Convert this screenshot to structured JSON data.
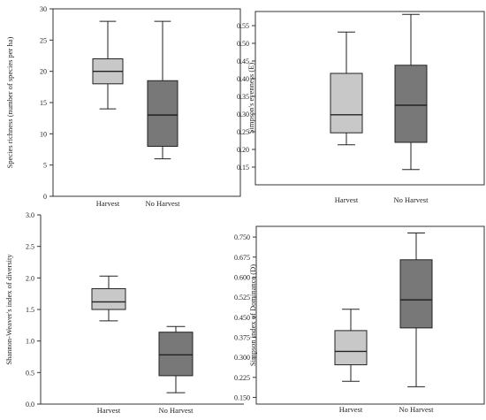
{
  "colors": {
    "harvest_fill": "#c8c8c8",
    "no_harvest_fill": "#787878",
    "stroke": "#222222",
    "frame": "#333333"
  },
  "chart_data": [
    {
      "type": "box",
      "ylabel": "Species richness (number of species per ha)",
      "categories": [
        "Harvest",
        "No Harvest"
      ],
      "ylim": [
        0,
        30
      ],
      "yticks": [
        "0",
        "5",
        "10",
        "15",
        "20",
        "25",
        "30"
      ],
      "frame": "full",
      "boxes": [
        {
          "category": "Harvest",
          "min": 14,
          "q1": 18,
          "median": 20,
          "q3": 22,
          "max": 28
        },
        {
          "category": "No Harvest",
          "min": 6,
          "q1": 8,
          "median": 13,
          "q3": 18.5,
          "max": 28
        }
      ]
    },
    {
      "type": "box",
      "ylabel": "Simpson's evenness (E)",
      "categories": [
        "Harvest",
        "No Harvest"
      ],
      "ylim": [
        0.1,
        0.59
      ],
      "yticks": [
        "0.15",
        "0.20",
        "0.25",
        "0.30",
        "0.35",
        "0.40",
        "0.45",
        "0.50",
        "0.55"
      ],
      "frame": "full",
      "boxes": [
        {
          "category": "Harvest",
          "min": 0.213,
          "q1": 0.247,
          "median": 0.298,
          "q3": 0.415,
          "max": 0.532
        },
        {
          "category": "No Harvest",
          "min": 0.143,
          "q1": 0.22,
          "median": 0.325,
          "q3": 0.438,
          "max": 0.582
        }
      ]
    },
    {
      "type": "box",
      "ylabel": "Shannon-Weaver's index of diversity",
      "categories": [
        "Harvest",
        "No Harvest"
      ],
      "ylim": [
        0,
        3
      ],
      "yticks": [
        "0.0",
        "0.5",
        "1.0",
        "1.5",
        "2.0",
        "2.5",
        "3.0"
      ],
      "frame": "axes",
      "boxes": [
        {
          "category": "Harvest",
          "min": 1.32,
          "q1": 1.5,
          "median": 1.62,
          "q3": 1.83,
          "max": 2.03
        },
        {
          "category": "No Harvest",
          "min": 0.18,
          "q1": 0.45,
          "median": 0.78,
          "q3": 1.14,
          "max": 1.23
        }
      ]
    },
    {
      "type": "box",
      "ylabel": "Simpson index of Dominance (D)",
      "categories": [
        "Harvest",
        "No Harvest"
      ],
      "ylim": [
        0.125,
        0.79
      ],
      "yticks": [
        "0.150",
        "0.225",
        "0.300",
        "0.375",
        "0.450",
        "0.525",
        "0.600",
        "0.675",
        "0.750"
      ],
      "frame": "full",
      "boxes": [
        {
          "category": "Harvest",
          "min": 0.21,
          "q1": 0.272,
          "median": 0.322,
          "q3": 0.4,
          "max": 0.48
        },
        {
          "category": "No Harvest",
          "min": 0.19,
          "q1": 0.41,
          "median": 0.515,
          "q3": 0.665,
          "max": 0.765
        }
      ]
    }
  ]
}
